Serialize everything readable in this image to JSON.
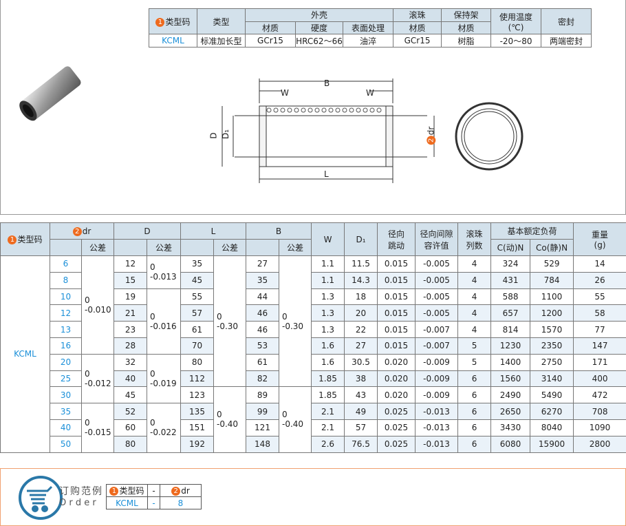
{
  "spec": {
    "headers": {
      "code": "类型码",
      "type": "类型",
      "shell": "外壳",
      "ball": "滚珠",
      "cage": "保持架",
      "temp": "使用温度",
      "temp_unit": "(℃)",
      "seal": "密封",
      "material": "材质",
      "hardness": "硬度",
      "surface": "表面处理"
    },
    "row": {
      "code": "KCML",
      "type": "标准加长型",
      "shell_material": "GCr15",
      "hardness": "HRC62～66",
      "surface": "油淬",
      "ball_material": "GCr15",
      "cage_material": "树脂",
      "temp": "-20～80",
      "seal": "两端密封"
    },
    "badges": {
      "one": "1",
      "two": "2"
    }
  },
  "drawing": {
    "B": "B",
    "W": "W",
    "L": "L",
    "D": "D",
    "D1": "D₁",
    "dr": "dr"
  },
  "table": {
    "headers": {
      "code": "类型码",
      "dr": "dr",
      "tol": "公差",
      "D": "D",
      "L": "L",
      "B": "B",
      "W": "W",
      "D1": "D₁",
      "runout": "径向\n跳动",
      "clearance": "径向间隙\n容许值",
      "rows": "滚珠\n列数",
      "load": "基本额定负荷",
      "C": "C(动)N",
      "Co": "Co(静)N",
      "weight": "重量\n(g)"
    },
    "code": "KCML",
    "rows": [
      {
        "dr": "6",
        "D": "12",
        "L": "35",
        "B": "27",
        "W": "1.1",
        "D1": "11.5",
        "runout": "0.015",
        "clear": "-0.005",
        "nrows": "4",
        "C": "324",
        "Co": "529",
        "wt": "14"
      },
      {
        "dr": "8",
        "D": "15",
        "L": "45",
        "B": "35",
        "W": "1.1",
        "D1": "14.3",
        "runout": "0.015",
        "clear": "-0.005",
        "nrows": "4",
        "C": "431",
        "Co": "784",
        "wt": "26"
      },
      {
        "dr": "10",
        "D": "19",
        "L": "55",
        "B": "44",
        "W": "1.3",
        "D1": "18",
        "runout": "0.015",
        "clear": "-0.005",
        "nrows": "4",
        "C": "588",
        "Co": "1100",
        "wt": "55"
      },
      {
        "dr": "12",
        "D": "21",
        "L": "57",
        "B": "46",
        "W": "1.3",
        "D1": "20",
        "runout": "0.015",
        "clear": "-0.005",
        "nrows": "4",
        "C": "657",
        "Co": "1200",
        "wt": "58"
      },
      {
        "dr": "13",
        "D": "23",
        "L": "61",
        "B": "46",
        "W": "1.3",
        "D1": "22",
        "runout": "0.015",
        "clear": "-0.007",
        "nrows": "4",
        "C": "814",
        "Co": "1570",
        "wt": "77"
      },
      {
        "dr": "16",
        "D": "28",
        "L": "70",
        "B": "53",
        "W": "1.6",
        "D1": "27",
        "runout": "0.015",
        "clear": "-0.007",
        "nrows": "5",
        "C": "1230",
        "Co": "2350",
        "wt": "147"
      },
      {
        "dr": "20",
        "D": "32",
        "L": "80",
        "B": "61",
        "W": "1.6",
        "D1": "30.5",
        "runout": "0.020",
        "clear": "-0.009",
        "nrows": "5",
        "C": "1400",
        "Co": "2750",
        "wt": "171"
      },
      {
        "dr": "25",
        "D": "40",
        "L": "112",
        "B": "82",
        "W": "1.85",
        "D1": "38",
        "runout": "0.020",
        "clear": "-0.009",
        "nrows": "6",
        "C": "1560",
        "Co": "3140",
        "wt": "400"
      },
      {
        "dr": "30",
        "D": "45",
        "L": "123",
        "B": "89",
        "W": "1.85",
        "D1": "43",
        "runout": "0.020",
        "clear": "-0.009",
        "nrows": "6",
        "C": "2490",
        "Co": "5490",
        "wt": "472"
      },
      {
        "dr": "35",
        "D": "52",
        "L": "135",
        "B": "99",
        "W": "2.1",
        "D1": "49",
        "runout": "0.025",
        "clear": "-0.013",
        "nrows": "6",
        "C": "2650",
        "Co": "6270",
        "wt": "708"
      },
      {
        "dr": "40",
        "D": "60",
        "L": "151",
        "B": "121",
        "W": "2.1",
        "D1": "57",
        "runout": "0.025",
        "clear": "-0.013",
        "nrows": "6",
        "C": "3430",
        "Co": "8040",
        "wt": "1090"
      },
      {
        "dr": "50",
        "D": "80",
        "L": "192",
        "B": "148",
        "W": "2.6",
        "D1": "76.5",
        "runout": "0.025",
        "clear": "-0.013",
        "nrows": "6",
        "C": "6080",
        "Co": "15900",
        "wt": "2800"
      }
    ],
    "tol": {
      "dr": [
        {
          "start": 0,
          "span": 6,
          "up": "0",
          "low": "-0.010"
        },
        {
          "start": 6,
          "span": 3,
          "up": "0",
          "low": "-0.012"
        },
        {
          "start": 9,
          "span": 3,
          "up": "0",
          "low": "-0.015"
        }
      ],
      "D": [
        {
          "start": 0,
          "span": 2,
          "up": "0",
          "low": "-0.013"
        },
        {
          "start": 2,
          "span": 4,
          "up": "0",
          "low": "-0.016"
        },
        {
          "start": 6,
          "span": 3,
          "up": "0",
          "low": "-0.019"
        },
        {
          "start": 9,
          "span": 3,
          "up": "0",
          "low": "-0.022"
        }
      ],
      "L": [
        {
          "start": 0,
          "span": 8,
          "up": "0",
          "low": "-0.30"
        },
        {
          "start": 8,
          "span": 4,
          "up": "0",
          "low": "-0.40"
        }
      ],
      "B": [
        {
          "start": 0,
          "span": 8,
          "up": "0",
          "low": "-0.30"
        },
        {
          "start": 8,
          "span": 4,
          "up": "0",
          "low": "-0.40"
        }
      ]
    }
  },
  "order": {
    "title": "订购范例",
    "subtitle": "O r d e r",
    "code_label": "类型码",
    "dash": "-",
    "dr_label": "dr",
    "code": "KCML",
    "dr": "8",
    "icon": "shopping-cart-icon",
    "accent": "#2a78a8"
  }
}
